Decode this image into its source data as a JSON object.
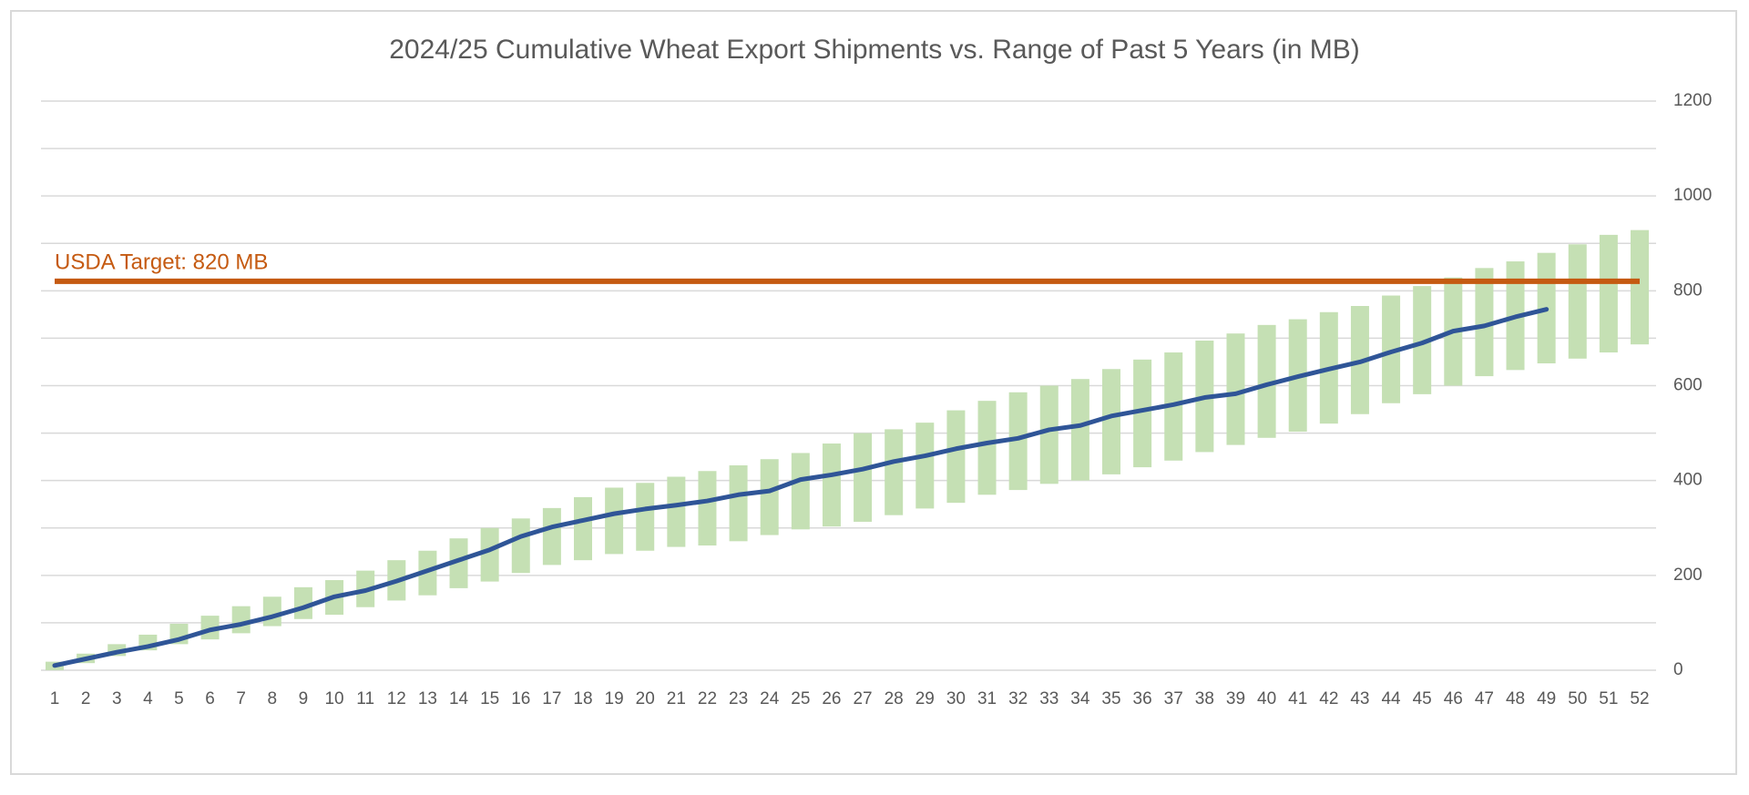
{
  "chart_data": {
    "type": "combo",
    "title": "2024/25 Cumulative Wheat Export Shipments vs. Range of Past 5 Years (in MB)",
    "categories": [
      1,
      2,
      3,
      4,
      5,
      6,
      7,
      8,
      9,
      10,
      11,
      12,
      13,
      14,
      15,
      16,
      17,
      18,
      19,
      20,
      21,
      22,
      23,
      24,
      25,
      26,
      27,
      28,
      29,
      30,
      31,
      32,
      33,
      34,
      35,
      36,
      37,
      38,
      39,
      40,
      41,
      42,
      43,
      44,
      45,
      46,
      47,
      48,
      49,
      50,
      51,
      52
    ],
    "range": {
      "color": "#c5e0b4",
      "low": [
        0,
        15,
        30,
        42,
        55,
        65,
        78,
        93,
        108,
        117,
        133,
        147,
        158,
        173,
        187,
        205,
        222,
        232,
        245,
        252,
        260,
        263,
        272,
        285,
        297,
        303,
        313,
        327,
        341,
        353,
        370,
        380,
        393,
        400,
        413,
        428,
        442,
        460,
        475,
        490,
        503,
        520,
        540,
        563,
        582,
        600,
        620,
        633,
        647,
        657,
        670,
        687
      ],
      "high": [
        18,
        35,
        55,
        75,
        98,
        115,
        135,
        155,
        175,
        190,
        210,
        232,
        252,
        278,
        300,
        320,
        342,
        365,
        385,
        395,
        408,
        420,
        432,
        445,
        458,
        478,
        500,
        508,
        522,
        548,
        568,
        586,
        600,
        614,
        635,
        655,
        670,
        695,
        710,
        728,
        740,
        755,
        768,
        790,
        810,
        828,
        848,
        862,
        880,
        898,
        918,
        928
      ]
    },
    "line": {
      "color": "#2f5597",
      "values": [
        10,
        24,
        38,
        50,
        65,
        85,
        97,
        113,
        132,
        155,
        168,
        188,
        210,
        232,
        254,
        282,
        302,
        316,
        330,
        340,
        348,
        357,
        370,
        378,
        402,
        412,
        424,
        440,
        452,
        467,
        479,
        489,
        507,
        516,
        536,
        548,
        560,
        575,
        583,
        602,
        619,
        635,
        650,
        671,
        690,
        715,
        726,
        745,
        761,
        null,
        null,
        null
      ]
    },
    "reference_line": {
      "value": 820,
      "label": "USDA Target: 820 MB",
      "color": "#c55a11"
    },
    "ylim": [
      0,
      1200
    ],
    "yticks": [
      0,
      200,
      400,
      600,
      800,
      1000,
      1200
    ],
    "minor_gridlines": [
      100,
      300,
      500,
      700,
      900,
      1100
    ],
    "grid": true,
    "y_axis_side": "right"
  }
}
